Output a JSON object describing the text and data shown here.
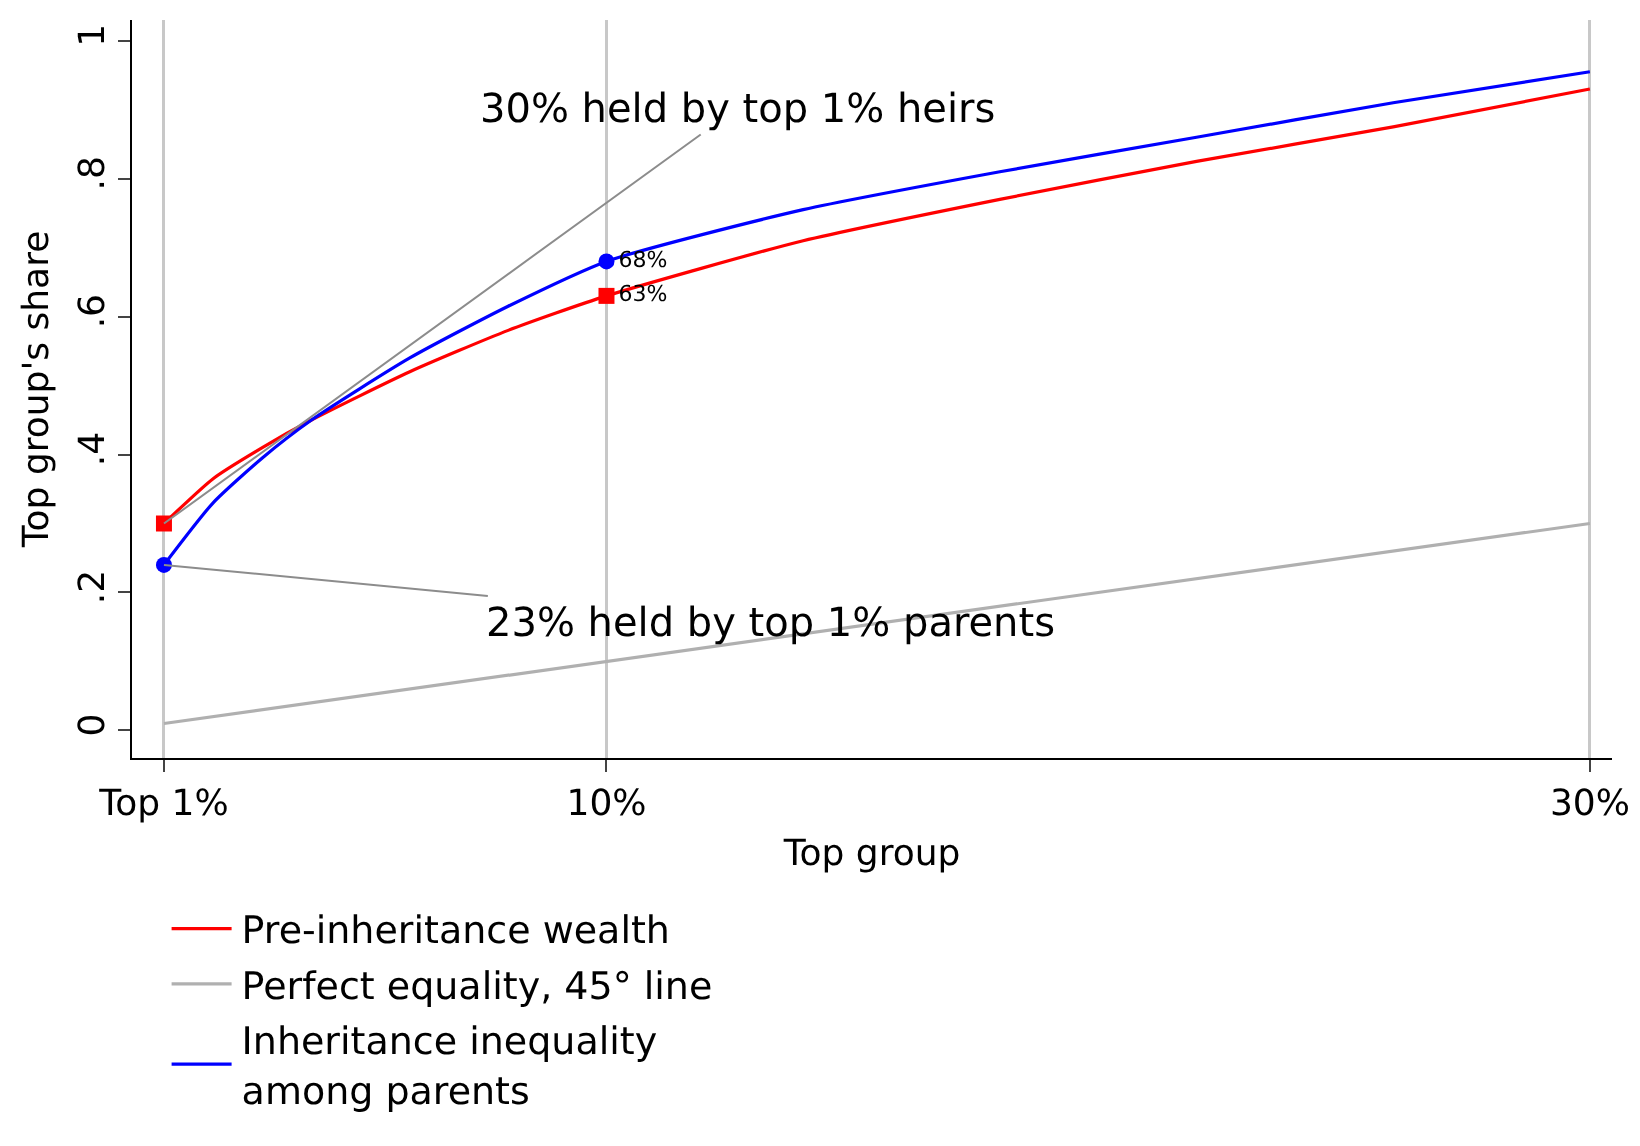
{
  "chart_data": {
    "type": "line",
    "xlabel": "Top group",
    "ylabel": "Top group's share",
    "xlim": [
      0.35,
      30.45
    ],
    "ylim": [
      -0.04,
      1.03
    ],
    "xticks": [
      {
        "value": 1,
        "label": "Top 1%"
      },
      {
        "value": 10,
        "label": "10%"
      },
      {
        "value": 30,
        "label": "30%"
      }
    ],
    "yticks": [
      0,
      {
        "value": 0.2,
        "label": ".2"
      },
      {
        "value": 0.4,
        "label": ".4"
      },
      {
        "value": 0.6,
        "label": ".6"
      },
      {
        "value": 0.8,
        "label": ".8"
      },
      1
    ],
    "grid": "x",
    "legend": "bottom",
    "line_style": "solid",
    "series": [
      {
        "name": "Pre-inheritance wealth",
        "color": "#ff0000",
        "x": [
          1,
          2,
          3,
          4,
          6,
          8,
          10,
          14,
          18,
          22,
          26,
          30
        ],
        "values": [
          0.3,
          0.365,
          0.41,
          0.45,
          0.52,
          0.58,
          0.63,
          0.71,
          0.77,
          0.825,
          0.875,
          0.93
        ]
      },
      {
        "name": "Perfect equality, 45° line",
        "color": "#b0b0b0",
        "x": [
          1,
          30
        ],
        "values": [
          0.01,
          0.3
        ]
      },
      {
        "name": "Inheritance inequality among parents",
        "color": "#0000ff",
        "x": [
          1,
          2,
          3,
          4,
          6,
          8,
          10,
          14,
          18,
          22,
          26,
          30
        ],
        "values": [
          0.24,
          0.33,
          0.395,
          0.45,
          0.54,
          0.615,
          0.68,
          0.755,
          0.81,
          0.86,
          0.91,
          0.955
        ]
      },
      {
        "type": "scatter",
        "marker": "square",
        "color": "#ff0000",
        "x": [
          1,
          10
        ],
        "values": [
          0.3,
          0.63
        ],
        "value_labels": [
          null,
          "63%"
        ]
      },
      {
        "type": "scatter",
        "marker": "circle",
        "color": "#0000ff",
        "x": [
          1,
          10
        ],
        "values": [
          0.24,
          0.68
        ],
        "value_labels": [
          null,
          "68%"
        ]
      }
    ],
    "annotations": [
      {
        "text": "30% held by top 1% heirs",
        "x": 1,
        "y": 0.3
      },
      {
        "text": "23% held by top 1% parents",
        "x": 1,
        "y": 0.24
      }
    ]
  }
}
